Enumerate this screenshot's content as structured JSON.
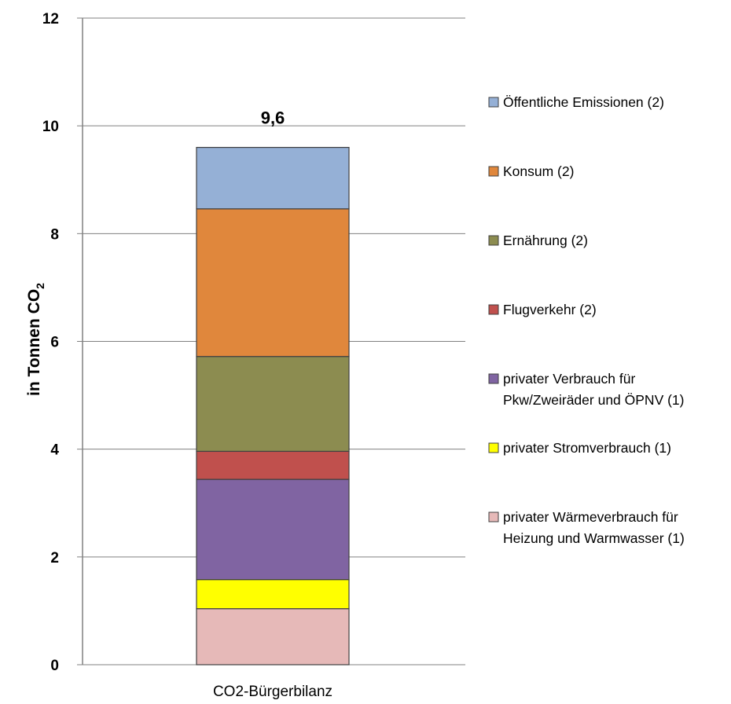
{
  "chart_data": {
    "type": "bar",
    "stacked": true,
    "categories": [
      "CO2-Bürgerbilanz"
    ],
    "ylabel": "in Tonnen CO",
    "ylabel_subscript": "2",
    "ylim": [
      0,
      12
    ],
    "yticks": [
      "0",
      "2",
      "4",
      "6",
      "8",
      "10",
      "12"
    ],
    "grid": true,
    "legend_position": "right",
    "total_label": "9,6",
    "series": [
      {
        "name": "privater Wärmeverbrauch für Heizung und Warmwasser (1)",
        "legend_lines": [
          "privater Wärmeverbrauch für",
          "Heizung und Warmwasser (1)"
        ],
        "values": [
          1.04
        ],
        "color": "#e6b9b8"
      },
      {
        "name": "privater Stromverbrauch (1)",
        "legend_lines": [
          "privater Stromverbrauch (1)"
        ],
        "values": [
          0.54
        ],
        "color": "#ffff00"
      },
      {
        "name": "privater Verbrauch für Pkw/Zweiräder und ÖPNV (1)",
        "legend_lines": [
          "privater Verbrauch für",
          "Pkw/Zweiräder und ÖPNV (1)"
        ],
        "values": [
          1.86
        ],
        "color": "#8064a2"
      },
      {
        "name": "Flugverkehr (2)",
        "legend_lines": [
          "Flugverkehr (2)"
        ],
        "values": [
          0.52
        ],
        "color": "#c0504d"
      },
      {
        "name": "Ernährung (2)",
        "legend_lines": [
          "Ernährung (2)"
        ],
        "values": [
          1.76
        ],
        "color": "#8c8c50"
      },
      {
        "name": "Konsum (2)",
        "legend_lines": [
          "Konsum (2)"
        ],
        "values": [
          2.74
        ],
        "color": "#e0873c"
      },
      {
        "name": "Öffentliche Emissionen (2)",
        "legend_lines": [
          "Öffentliche Emissionen (2)"
        ],
        "values": [
          1.14
        ],
        "color": "#95b0d6"
      }
    ]
  }
}
